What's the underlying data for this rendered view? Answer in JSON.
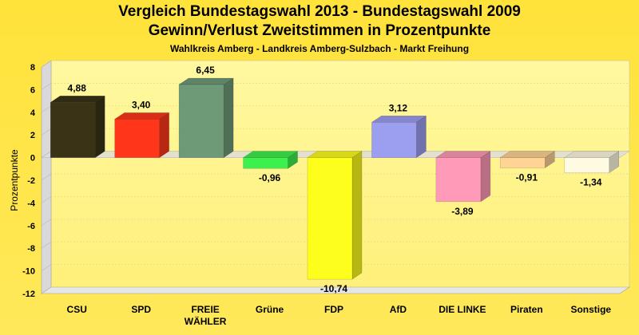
{
  "chart_data": {
    "type": "bar",
    "title": "Vergleich Bundestagswahl 2013 - Bundestagswahl 2009",
    "subtitle": "Gewinn/Verlust Zweitstimmen in Prozentpunkte",
    "subtitle2": "Wahlkreis Amberg - Landkreis Amberg-Sulzbach - Markt Freihung",
    "ylabel": "Prozentpunkte",
    "xlabel": "",
    "ylim": [
      -12,
      8
    ],
    "yticks": [
      8,
      6,
      4,
      2,
      0,
      -2,
      -4,
      -6,
      -8,
      -10,
      -12
    ],
    "grid": true,
    "categories": [
      "CSU",
      "SPD",
      "FREIE WÄHLER",
      "Grüne",
      "FDP",
      "AfD",
      "DIE LINKE",
      "Piraten",
      "Sonstige"
    ],
    "category_lines": [
      [
        "CSU"
      ],
      [
        "SPD"
      ],
      [
        "FREIE",
        "WÄHLER"
      ],
      [
        "Grüne"
      ],
      [
        "FDP"
      ],
      [
        "AfD"
      ],
      [
        "DIE LINKE"
      ],
      [
        "Piraten"
      ],
      [
        "Sonstige"
      ]
    ],
    "values": [
      4.88,
      3.4,
      6.45,
      -0.96,
      -10.74,
      3.12,
      -3.89,
      -0.91,
      -1.34
    ],
    "value_labels": [
      "4,88",
      "3,40",
      "6,45",
      "-0,96",
      "-10,74",
      "3,12",
      "-3,89",
      "-0,91",
      "-1,34"
    ],
    "colors": [
      "#3b3316",
      "#ff3619",
      "#6e9a78",
      "#3ef04e",
      "#fefe1c",
      "#9c9ef0",
      "#ff9ab8",
      "#ffd494",
      "#fffbe2"
    ]
  }
}
